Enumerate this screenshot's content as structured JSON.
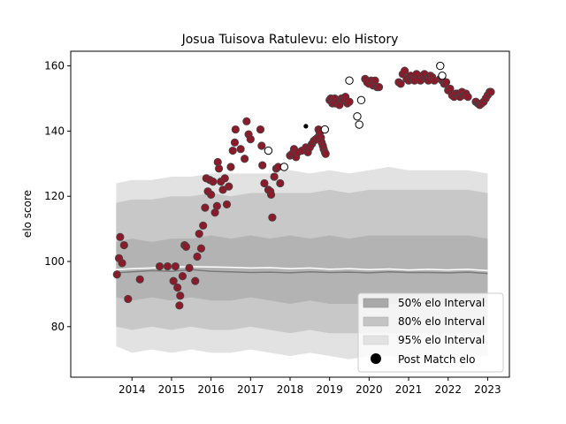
{
  "chart_data": {
    "type": "scatter",
    "title": "Josua Tuisova Ratulevu: elo History",
    "xlabel": "",
    "ylabel": "elo score",
    "xlim": [
      2012.45,
      2023.55
    ],
    "ylim": [
      64.5,
      164.5
    ],
    "x_ticks": [
      2014,
      2015,
      2016,
      2017,
      2018,
      2019,
      2020,
      2021,
      2022,
      2023
    ],
    "y_ticks": [
      80,
      100,
      120,
      140,
      160
    ],
    "x_tick_labels": [
      "2014",
      "2015",
      "2016",
      "2017",
      "2018",
      "2019",
      "2020",
      "2021",
      "2022",
      "2023"
    ],
    "y_tick_labels": [
      "80",
      "100",
      "120",
      "140",
      "160"
    ],
    "legend_position": "lower-right",
    "legend": [
      {
        "label": "50% elo Interval",
        "kind": "band",
        "color": "#a9a9a9"
      },
      {
        "label": "80% elo Interval",
        "kind": "band",
        "color": "#c4c4c4"
      },
      {
        "label": "95% elo Interval",
        "kind": "band",
        "color": "#e2e2e2"
      },
      {
        "label": "Post Match elo",
        "kind": "marker",
        "color": "#000000"
      }
    ],
    "colors": {
      "match_fill": "#8b1a2b",
      "match_edge": "#444444",
      "band_95": "#e2e2e2",
      "band_80": "#c8c8c8",
      "band_50": "#b3b3b3",
      "median_line": "#7a7a7a",
      "mean_line": "#ffffff"
    },
    "bands": {
      "x": [
        2013.6,
        2014.0,
        2014.5,
        2015.0,
        2015.5,
        2016.0,
        2016.5,
        2017.0,
        2017.5,
        2018.0,
        2018.5,
        2019.0,
        2019.5,
        2020.0,
        2020.5,
        2021.0,
        2021.5,
        2022.0,
        2022.5,
        2023.0
      ],
      "p95_low": [
        74,
        72,
        73,
        72,
        73,
        72,
        72,
        73,
        72,
        71,
        72,
        71,
        70,
        71,
        71,
        70,
        71,
        70,
        71,
        71
      ],
      "p80_low": [
        80,
        79,
        80,
        79,
        80,
        79,
        79,
        80,
        79,
        78,
        79,
        78,
        78,
        78,
        78,
        78,
        78,
        78,
        78,
        78
      ],
      "p50_low": [
        89,
        88,
        89,
        88,
        89,
        88,
        88,
        89,
        88,
        87,
        88,
        87,
        87,
        87,
        87,
        87,
        87,
        87,
        87,
        87
      ],
      "p50_high": [
        106,
        107,
        106,
        107,
        107,
        108,
        107,
        108,
        107,
        108,
        107,
        108,
        107,
        108,
        108,
        108,
        108,
        108,
        108,
        107
      ],
      "p80_high": [
        118,
        119,
        119,
        120,
        120,
        121,
        120,
        121,
        121,
        121,
        121,
        122,
        121,
        122,
        122,
        122,
        122,
        122,
        122,
        121
      ],
      "p95_high": [
        124,
        125,
        125,
        126,
        126,
        127,
        127,
        127,
        127,
        128,
        127,
        128,
        127,
        128,
        129,
        128,
        128,
        128,
        128,
        127
      ],
      "median": [
        96.5,
        96.8,
        97.2,
        97.0,
        97.5,
        97.0,
        96.8,
        96.6,
        96.7,
        96.5,
        96.8,
        96.6,
        96.7,
        96.5,
        96.8,
        96.6,
        96.6,
        96.5,
        96.7,
        96.3
      ],
      "mean": [
        97.5,
        97.8,
        98.0,
        98.3,
        98.4,
        98.3,
        98.2,
        98.0,
        98.1,
        97.8,
        98.0,
        97.6,
        97.8,
        97.5,
        97.7,
        97.4,
        97.6,
        97.4,
        97.6,
        97.2
      ]
    },
    "series": [
      {
        "name": "Post Match elo",
        "style": "filled",
        "points": [
          [
            2013.62,
            96
          ],
          [
            2013.67,
            101
          ],
          [
            2013.7,
            107.5
          ],
          [
            2013.75,
            99.5
          ],
          [
            2013.8,
            105
          ],
          [
            2013.9,
            88.5
          ],
          [
            2014.2,
            94.5
          ],
          [
            2014.7,
            98.5
          ],
          [
            2014.9,
            98.5
          ],
          [
            2015.05,
            94
          ],
          [
            2015.1,
            98.5
          ],
          [
            2015.15,
            92
          ],
          [
            2015.2,
            86.5
          ],
          [
            2015.22,
            89.5
          ],
          [
            2015.28,
            95.5
          ],
          [
            2015.33,
            105
          ],
          [
            2015.37,
            104.5
          ],
          [
            2015.45,
            98
          ],
          [
            2015.6,
            94
          ],
          [
            2015.65,
            101.5
          ],
          [
            2015.7,
            108.5
          ],
          [
            2015.75,
            104
          ],
          [
            2015.8,
            111
          ],
          [
            2015.85,
            116.5
          ],
          [
            2015.88,
            125.5
          ],
          [
            2015.92,
            121.5
          ],
          [
            2015.97,
            125
          ],
          [
            2016.0,
            120.5
          ],
          [
            2016.05,
            124.5
          ],
          [
            2016.1,
            115
          ],
          [
            2016.15,
            117
          ],
          [
            2016.2,
            128.5
          ],
          [
            2016.25,
            124.5
          ],
          [
            2016.3,
            122
          ],
          [
            2016.35,
            125.5
          ],
          [
            2016.4,
            117.5
          ],
          [
            2016.45,
            123
          ],
          [
            2016.5,
            129
          ],
          [
            2016.55,
            134
          ],
          [
            2016.6,
            136.5
          ],
          [
            2016.62,
            140.5
          ],
          [
            2016.75,
            134.5
          ],
          [
            2016.85,
            131.5
          ],
          [
            2016.9,
            143
          ],
          [
            2016.95,
            139
          ],
          [
            2017.0,
            137.5
          ],
          [
            2017.25,
            140.5
          ],
          [
            2017.28,
            135.5
          ],
          [
            2017.3,
            129.5
          ],
          [
            2017.35,
            124
          ],
          [
            2017.45,
            122
          ],
          [
            2017.5,
            121.5
          ],
          [
            2017.52,
            120.5
          ],
          [
            2017.55,
            113.5
          ],
          [
            2017.6,
            126
          ],
          [
            2017.65,
            128.5
          ],
          [
            2017.7,
            129
          ],
          [
            2017.75,
            124
          ],
          [
            2016.17,
            130.5
          ],
          [
            2018.0,
            132.5
          ],
          [
            2018.05,
            133
          ],
          [
            2018.1,
            134.5
          ],
          [
            2018.15,
            132
          ],
          [
            2018.2,
            133.5
          ],
          [
            2018.3,
            134
          ],
          [
            2018.4,
            135
          ],
          [
            2018.45,
            133.5
          ],
          [
            2018.5,
            135
          ],
          [
            2018.55,
            136
          ],
          [
            2018.6,
            137
          ],
          [
            2018.65,
            137.5
          ],
          [
            2018.7,
            138
          ],
          [
            2018.72,
            140.5
          ],
          [
            2018.75,
            139.5
          ],
          [
            2018.78,
            138
          ],
          [
            2018.8,
            136.5
          ],
          [
            2018.83,
            135.5
          ],
          [
            2018.85,
            134.5
          ],
          [
            2018.88,
            133.5
          ],
          [
            2018.9,
            133
          ],
          [
            2019.0,
            149.5
          ],
          [
            2019.03,
            150
          ],
          [
            2019.07,
            148.5
          ],
          [
            2019.1,
            149
          ],
          [
            2019.13,
            150
          ],
          [
            2019.15,
            148.5
          ],
          [
            2019.2,
            149
          ],
          [
            2019.25,
            148
          ],
          [
            2019.3,
            150
          ],
          [
            2019.35,
            149.5
          ],
          [
            2019.4,
            150.5
          ],
          [
            2019.45,
            148.5
          ],
          [
            2019.5,
            149
          ],
          [
            2019.9,
            156
          ],
          [
            2019.95,
            155
          ],
          [
            2020.0,
            154.5
          ],
          [
            2020.05,
            155.5
          ],
          [
            2020.1,
            154
          ],
          [
            2020.15,
            155.5
          ],
          [
            2020.2,
            153.5
          ],
          [
            2020.25,
            153.5
          ],
          [
            2020.75,
            155
          ],
          [
            2020.8,
            154.5
          ],
          [
            2020.85,
            157.5
          ],
          [
            2020.9,
            158.5
          ],
          [
            2020.95,
            156
          ],
          [
            2021.0,
            155.5
          ],
          [
            2021.05,
            157
          ],
          [
            2021.1,
            156
          ],
          [
            2021.15,
            155.5
          ],
          [
            2021.2,
            157.5
          ],
          [
            2021.25,
            156
          ],
          [
            2021.3,
            155.5
          ],
          [
            2021.35,
            157
          ],
          [
            2021.4,
            157.5
          ],
          [
            2021.45,
            156
          ],
          [
            2021.5,
            155.5
          ],
          [
            2021.55,
            157
          ],
          [
            2021.6,
            156.5
          ],
          [
            2021.65,
            155.5
          ],
          [
            2021.8,
            156
          ],
          [
            2021.85,
            155.5
          ],
          [
            2021.9,
            154.5
          ],
          [
            2021.95,
            155
          ],
          [
            2022.0,
            152.5
          ],
          [
            2022.05,
            153
          ],
          [
            2022.1,
            151
          ],
          [
            2022.15,
            150.5
          ],
          [
            2022.2,
            151.5
          ],
          [
            2022.25,
            151.5
          ],
          [
            2022.3,
            150.5
          ],
          [
            2022.35,
            152
          ],
          [
            2022.4,
            151
          ],
          [
            2022.45,
            151.5
          ],
          [
            2022.5,
            150.5
          ],
          [
            2022.7,
            149
          ],
          [
            2022.75,
            148.5
          ],
          [
            2022.8,
            148
          ],
          [
            2022.85,
            148.5
          ],
          [
            2022.9,
            149
          ],
          [
            2022.95,
            150
          ],
          [
            2023.0,
            151
          ],
          [
            2023.05,
            152
          ],
          [
            2023.08,
            152
          ]
        ]
      },
      {
        "name": "Open",
        "style": "open",
        "points": [
          [
            2017.45,
            134
          ],
          [
            2017.85,
            129
          ],
          [
            2018.88,
            140.5
          ],
          [
            2019.5,
            155.5
          ],
          [
            2019.7,
            144.5
          ],
          [
            2019.75,
            142
          ],
          [
            2019.8,
            149.5
          ],
          [
            2021.8,
            160
          ],
          [
            2021.85,
            157
          ]
        ]
      },
      {
        "name": "Small",
        "style": "small",
        "points": [
          [
            2018.4,
            141.5
          ]
        ]
      }
    ]
  }
}
